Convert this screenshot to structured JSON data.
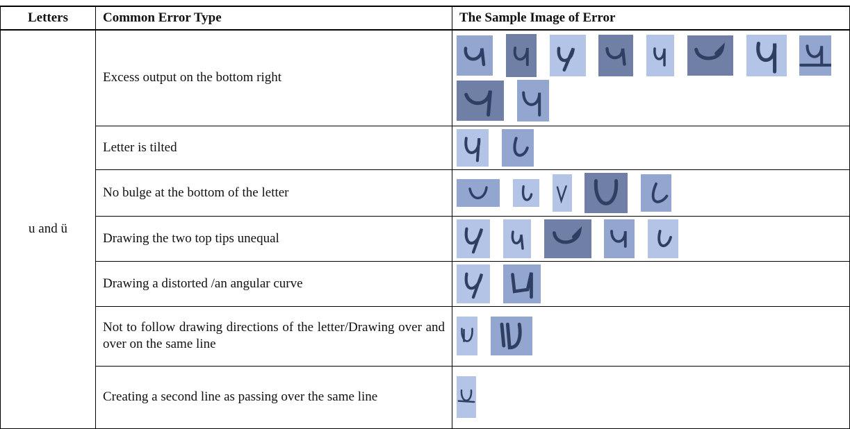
{
  "header": [
    "Letters",
    "Common Error Type",
    "The Sample Image of Error"
  ],
  "letters": "u and ü",
  "rows": [
    {
      "error": "Excess output on the bottom right"
    },
    {
      "error": "Letter is tilted"
    },
    {
      "error": "No bulge at the bottom of the letter"
    },
    {
      "error": "Drawing the two top tips unequal"
    },
    {
      "error": "Drawing a distorted /an angular curve"
    },
    {
      "error": "Not to follow drawing directions of the letter/Drawing over and over on the same line"
    },
    {
      "error": "Creating a second line as passing over the same line"
    }
  ]
}
